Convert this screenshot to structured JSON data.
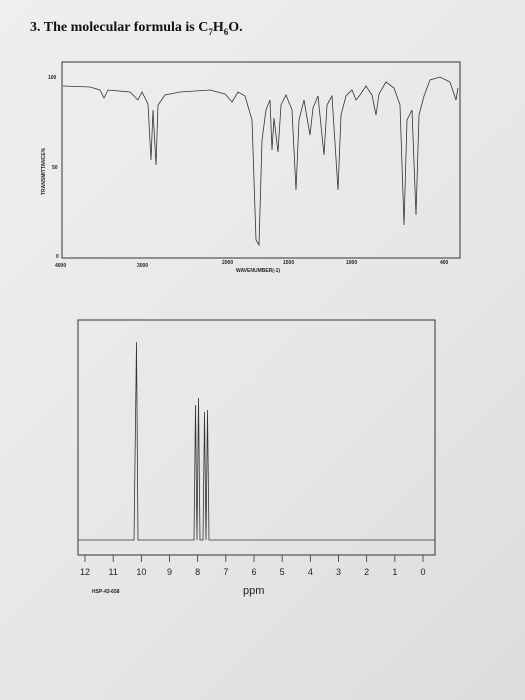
{
  "question": {
    "prefix": "3. The molecular formula is ",
    "c": "C",
    "c_count": "7",
    "h": "H",
    "h_count": "6",
    "suffix": "O."
  },
  "ir": {
    "y_title": "TRANSMITTANCE%",
    "y_labels": [
      "100",
      "50",
      "0"
    ],
    "x_labels": [
      "4000",
      "3000",
      "2000",
      "1500",
      "1000",
      "400"
    ],
    "x_title": "WAVENUMBER(-1)"
  },
  "nmr": {
    "x_labels": [
      "12",
      "11",
      "10",
      "9",
      "8",
      "7",
      "6",
      "5",
      "4",
      "3",
      "2",
      "1",
      "0"
    ],
    "x_title": "ppm",
    "code": "HSP-43-658"
  }
}
